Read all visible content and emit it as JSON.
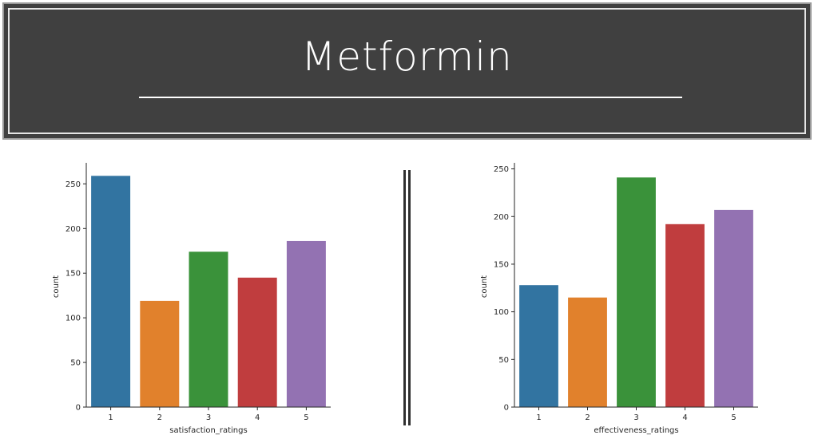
{
  "title": "Metformin",
  "chart_data": [
    {
      "type": "bar",
      "categories": [
        "1",
        "2",
        "3",
        "4",
        "5"
      ],
      "values": [
        259,
        119,
        174,
        145,
        186
      ],
      "xlabel": "satisfaction_ratings",
      "ylabel": "count",
      "ylim": [
        0,
        270
      ],
      "yticks": [
        0,
        50,
        100,
        150,
        200,
        250
      ],
      "colors": [
        "#3274a1",
        "#e1812c",
        "#3a923a",
        "#c03d3e",
        "#9372b2"
      ],
      "grid": false
    },
    {
      "type": "bar",
      "categories": [
        "1",
        "2",
        "3",
        "4",
        "5"
      ],
      "values": [
        128,
        115,
        241,
        192,
        207
      ],
      "xlabel": "effectiveness_ratings",
      "ylabel": "count",
      "ylim": [
        0,
        253
      ],
      "yticks": [
        0,
        50,
        100,
        150,
        200,
        250
      ],
      "colors": [
        "#3274a1",
        "#e1812c",
        "#3a923a",
        "#c03d3e",
        "#9372b2"
      ],
      "grid": false
    }
  ]
}
